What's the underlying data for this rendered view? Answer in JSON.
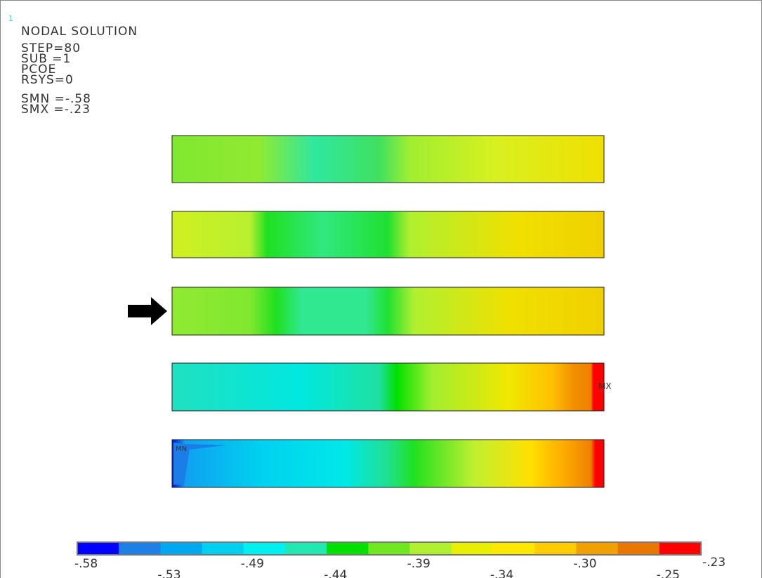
{
  "header": {
    "window_number": "1",
    "title": "NODAL SOLUTION",
    "lines": [
      "STEP=80",
      "SUB =1",
      "PCOE",
      "RSYS=0",
      "SMN =-.58",
      "SMX =-.23"
    ]
  },
  "plot": {
    "min_marker": "MN",
    "max_marker": "MX"
  },
  "legend": {
    "colors": [
      "#0000ff",
      "#1e7fe6",
      "#00a8f0",
      "#00d0f0",
      "#00f0f0",
      "#20e8b0",
      "#00e000",
      "#70e820",
      "#b0f030",
      "#e8f000",
      "#ffe800",
      "#ffcc00",
      "#f0a000",
      "#e87800",
      "#ff0000"
    ],
    "labels": [
      "-.58",
      "-.53",
      "-.49",
      "-.44",
      "-.39",
      "-.34",
      "-.30",
      "-.25",
      "-.23"
    ]
  }
}
